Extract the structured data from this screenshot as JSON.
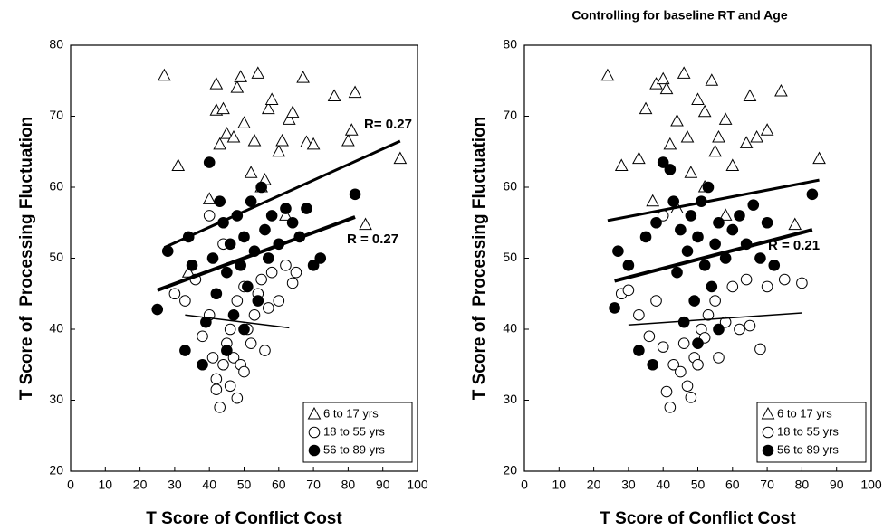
{
  "chart_data": [
    {
      "type": "scatter",
      "x_label": "T Score of Conflict Cost",
      "y_label": "T Score of  Processing Fluctuation",
      "xlim": [
        0,
        100
      ],
      "ylim": [
        20,
        80
      ],
      "xticks": [
        0,
        10,
        20,
        30,
        40,
        50,
        60,
        70,
        80,
        90,
        100
      ],
      "yticks": [
        20,
        30,
        40,
        50,
        60,
        70,
        80
      ],
      "series": [
        {
          "name": "6 to 17 yrs",
          "color": "#000000",
          "marker": "triangle",
          "x": [
            27,
            31,
            34,
            40,
            42,
            42,
            43,
            44,
            45,
            47,
            48,
            49,
            50,
            52,
            53,
            54,
            55,
            56,
            57,
            58,
            60,
            61,
            63,
            64,
            67,
            68,
            70,
            76,
            80,
            82,
            81,
            95,
            85,
            62
          ],
          "values": [
            75.7,
            63,
            48,
            58.3,
            74.5,
            70.8,
            66,
            71,
            67.5,
            67,
            74,
            75.5,
            69,
            62,
            66.5,
            76,
            60,
            61,
            71,
            72.3,
            65,
            66.5,
            69.5,
            70.5,
            75.4,
            66.3,
            66,
            72.8,
            66.5,
            73.3,
            68,
            64,
            54.7,
            56
          ]
        },
        {
          "name": "18 to 55 yrs",
          "color": "#000000",
          "marker": "circle",
          "x": [
            30,
            33,
            36,
            38,
            40,
            41,
            42,
            42,
            43,
            44,
            45,
            46,
            46,
            47,
            48,
            48,
            49,
            50,
            50,
            51,
            52,
            53,
            54,
            55,
            56,
            57,
            58,
            60,
            62,
            64,
            65,
            40,
            44
          ],
          "values": [
            45,
            44,
            47,
            39,
            42,
            36,
            33,
            31.5,
            29,
            35,
            38,
            40,
            32,
            36,
            30.3,
            44,
            35,
            34,
            46,
            40,
            38,
            42,
            45,
            47,
            37,
            43,
            48,
            44,
            49,
            46.5,
            48,
            56,
            52
          ]
        },
        {
          "name": "56 to 89 yrs",
          "color": "#000000",
          "marker": "filled-circle",
          "x": [
            25,
            28,
            33,
            34,
            35,
            38,
            39,
            40,
            41,
            42,
            43,
            44,
            45,
            46,
            47,
            48,
            49,
            50,
            51,
            52,
            53,
            54,
            55,
            56,
            57,
            58,
            60,
            62,
            64,
            66,
            68,
            70,
            72,
            82,
            45,
            50
          ],
          "values": [
            42.8,
            51,
            37,
            53,
            49,
            35,
            41,
            63.5,
            50,
            45,
            58,
            55,
            48,
            52,
            42,
            56,
            49,
            53,
            46,
            58,
            51,
            44,
            60,
            54,
            50,
            56,
            52,
            57,
            55,
            53,
            57,
            49,
            50,
            59,
            37,
            40
          ]
        }
      ],
      "trend_lines": [
        {
          "x": [
            27,
            95
          ],
          "y": [
            51.5,
            66.5
          ],
          "line_width": 3,
          "label": "R= 0.27"
        },
        {
          "x": [
            25,
            82
          ],
          "y": [
            45.5,
            55.8
          ],
          "line_width": 4,
          "label": "R = 0.27"
        },
        {
          "x": [
            33,
            63
          ],
          "y": [
            42,
            40.2
          ],
          "line_width": 1.5
        }
      ]
    },
    {
      "type": "scatter",
      "title": "Controlling for baseline RT and Age",
      "x_label": "T Score of Conflict Cost",
      "y_label": "T Score of  Processing Fluctuation",
      "xlim": [
        0,
        100
      ],
      "ylim": [
        20,
        80
      ],
      "xticks": [
        0,
        10,
        20,
        30,
        40,
        50,
        60,
        70,
        80,
        90,
        100
      ],
      "yticks": [
        20,
        30,
        40,
        50,
        60,
        70,
        80
      ],
      "series": [
        {
          "name": "6 to 17 yrs",
          "color": "#000000",
          "marker": "triangle",
          "x": [
            24,
            28,
            33,
            35,
            37,
            38,
            40,
            41,
            42,
            44,
            46,
            47,
            48,
            50,
            52,
            54,
            55,
            56,
            58,
            60,
            64,
            65,
            67,
            70,
            74,
            85,
            78,
            58,
            52,
            44
          ],
          "values": [
            75.7,
            63,
            64,
            71,
            58,
            74.5,
            75.2,
            73.8,
            66,
            69.3,
            76,
            67,
            62,
            72.3,
            70.6,
            75,
            65,
            67,
            69.5,
            63,
            66.2,
            72.8,
            67,
            68,
            73.5,
            64,
            54.7,
            56,
            60,
            57
          ]
        },
        {
          "name": "18 to 55 yrs",
          "color": "#000000",
          "marker": "circle",
          "x": [
            28,
            30,
            33,
            36,
            38,
            40,
            41,
            42,
            43,
            45,
            46,
            47,
            48,
            49,
            50,
            51,
            52,
            53,
            55,
            56,
            58,
            60,
            62,
            64,
            65,
            68,
            70,
            75,
            80,
            40
          ],
          "values": [
            45,
            45.5,
            42,
            39,
            44,
            37.5,
            31.2,
            29,
            35,
            34,
            38,
            32,
            30.4,
            36,
            35,
            40,
            38.8,
            42,
            44,
            36,
            41,
            46,
            40,
            47,
            40.5,
            37.2,
            46,
            47,
            46.5,
            56
          ]
        },
        {
          "name": "56 to 89 yrs",
          "color": "#000000",
          "marker": "filled-circle",
          "x": [
            26,
            27,
            30,
            33,
            35,
            37,
            38,
            40,
            42,
            43,
            44,
            45,
            46,
            47,
            48,
            49,
            50,
            51,
            52,
            53,
            54,
            55,
            56,
            58,
            60,
            62,
            64,
            66,
            68,
            70,
            72,
            83,
            50,
            56
          ],
          "values": [
            43,
            51,
            49,
            37,
            53,
            35,
            55,
            63.5,
            62.5,
            58,
            48,
            54,
            41,
            51,
            56,
            44,
            53,
            58,
            49,
            60,
            46,
            52,
            55,
            50,
            54,
            56,
            52,
            57.5,
            50,
            55,
            49,
            59,
            38,
            40
          ]
        }
      ],
      "trend_lines": [
        {
          "x": [
            24,
            85
          ],
          "y": [
            55.3,
            61
          ],
          "line_width": 3
        },
        {
          "x": [
            26,
            83
          ],
          "y": [
            46.8,
            54
          ],
          "line_width": 4,
          "label": "R = 0.21"
        },
        {
          "x": [
            30,
            80
          ],
          "y": [
            40.6,
            42.3
          ],
          "line_width": 1.5
        }
      ]
    }
  ]
}
